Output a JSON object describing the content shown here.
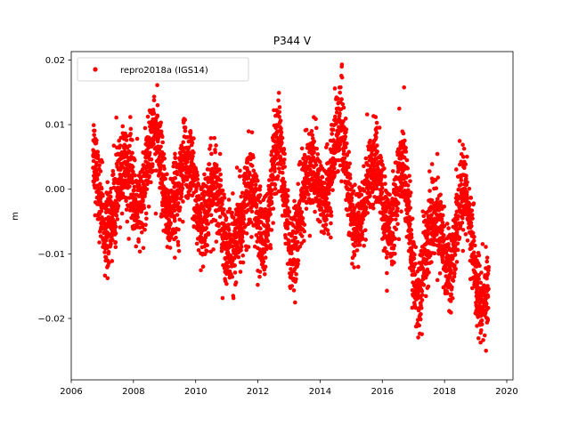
{
  "chart_data": {
    "type": "scatter",
    "title": "P344 V",
    "xlabel": "",
    "ylabel": "m",
    "xlim": [
      2006.0,
      2020.2
    ],
    "ylim": [
      -0.0295,
      0.0213
    ],
    "xticks": [
      "2006",
      "2008",
      "2010",
      "2012",
      "2014",
      "2016",
      "2018",
      "2020"
    ],
    "yticks": [
      "0.02",
      "0.01",
      "0.00",
      "−0.01",
      "−0.02"
    ],
    "grid": false,
    "legend_position": "top-left",
    "color": "#ff0000",
    "series": [
      {
        "name": "repro2018a (IGS14)",
        "x_start": 2006.7,
        "x_end": 2019.42,
        "anchors": [
          [
            2006.7,
            0.003
          ],
          [
            2007.1,
            -0.002
          ],
          [
            2007.5,
            -0.004
          ],
          [
            2007.9,
            0.004
          ],
          [
            2008.3,
            0.0
          ],
          [
            2008.7,
            0.006
          ],
          [
            2009.1,
            0.001
          ],
          [
            2009.5,
            -0.002
          ],
          [
            2009.9,
            0.004
          ],
          [
            2010.3,
            -0.003
          ],
          [
            2010.7,
            -0.004
          ],
          [
            2011.1,
            -0.005
          ],
          [
            2011.5,
            -0.008
          ],
          [
            2011.9,
            0.0
          ],
          [
            2012.3,
            -0.005
          ],
          [
            2012.7,
            0.003
          ],
          [
            2013.1,
            -0.006
          ],
          [
            2013.5,
            -0.003
          ],
          [
            2013.9,
            0.003
          ],
          [
            2014.3,
            0.002
          ],
          [
            2014.7,
            0.006
          ],
          [
            2015.1,
            -0.002
          ],
          [
            2015.5,
            -0.004
          ],
          [
            2015.9,
            0.004
          ],
          [
            2016.3,
            -0.005
          ],
          [
            2016.7,
            0.0
          ],
          [
            2017.1,
            -0.012
          ],
          [
            2017.5,
            -0.01
          ],
          [
            2017.9,
            -0.006
          ],
          [
            2018.3,
            -0.008
          ],
          [
            2018.7,
            -0.004
          ],
          [
            2019.1,
            -0.012
          ],
          [
            2019.42,
            -0.018
          ]
        ],
        "amplitude": 0.0045,
        "noise": 0.0032
      }
    ]
  }
}
